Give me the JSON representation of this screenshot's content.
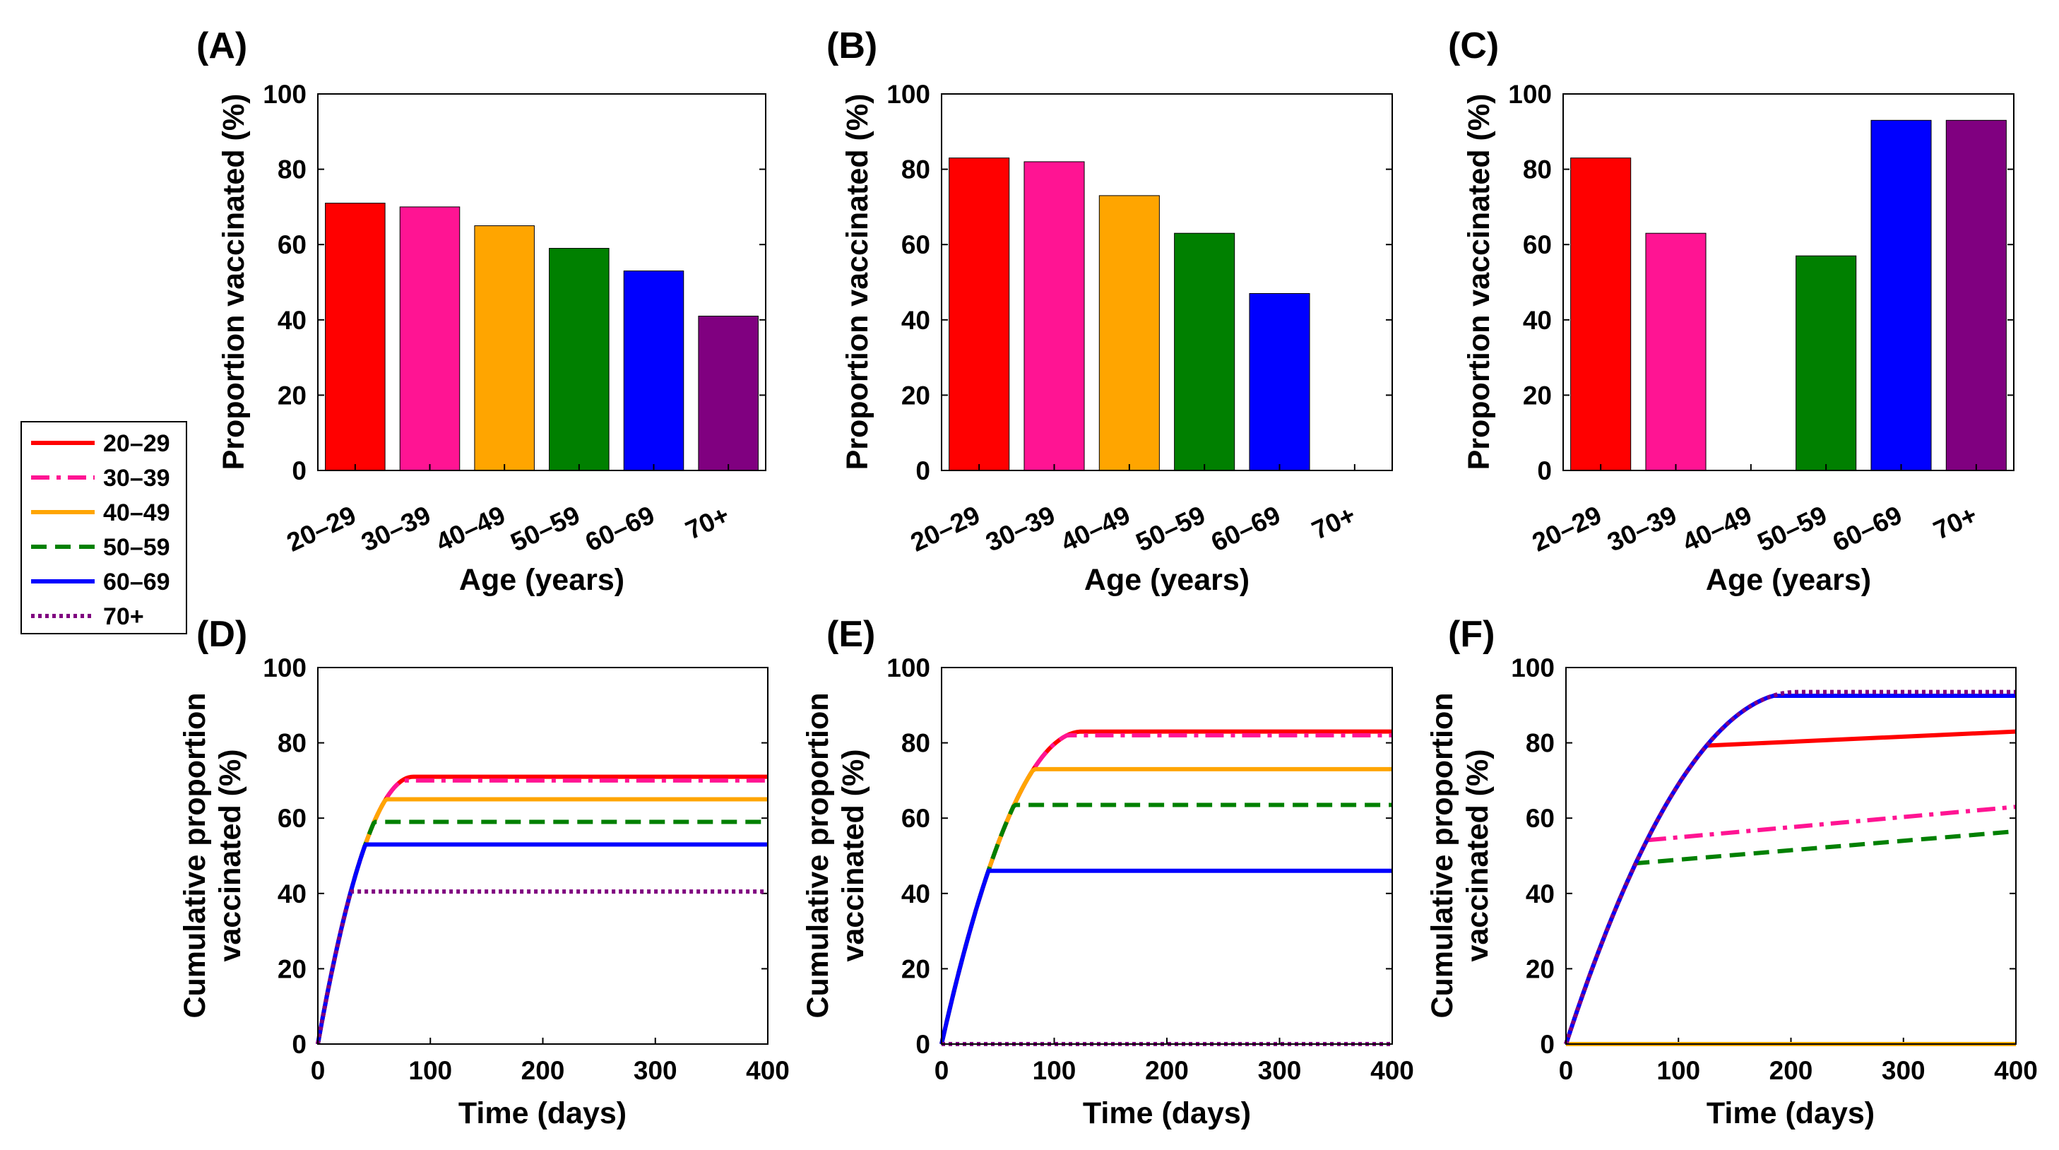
{
  "legend": {
    "entries": [
      {
        "label": "20–29",
        "color": "#ff0000",
        "style": "solid"
      },
      {
        "label": "30–39",
        "color": "#ff1493",
        "style": "dashdot"
      },
      {
        "label": "40–49",
        "color": "#ffa500",
        "style": "solid"
      },
      {
        "label": "50–59",
        "color": "#008000",
        "style": "dashed"
      },
      {
        "label": "60–69",
        "color": "#0000ff",
        "style": "solid"
      },
      {
        "label": "70+",
        "color": "#800080",
        "style": "dotted"
      }
    ]
  },
  "chart_data": [
    {
      "panel": "(A)",
      "type": "bar",
      "categories": [
        "20–29",
        "30–39",
        "40–49",
        "50–59",
        "60–69",
        "70+"
      ],
      "values": [
        71,
        70,
        65,
        59,
        53,
        41
      ],
      "colors": [
        "#ff0000",
        "#ff1493",
        "#ffa500",
        "#008000",
        "#0000ff",
        "#800080"
      ],
      "xlabel": "Age (years)",
      "ylabel": "Proportion vaccinated (%)",
      "ylim": [
        0,
        100
      ],
      "yticks": [
        0,
        20,
        40,
        60,
        80,
        100
      ]
    },
    {
      "panel": "(B)",
      "type": "bar",
      "categories": [
        "20–29",
        "30–39",
        "40–49",
        "50–59",
        "60–69",
        "70+"
      ],
      "values": [
        83,
        82,
        73,
        63,
        47,
        0
      ],
      "colors": [
        "#ff0000",
        "#ff1493",
        "#ffa500",
        "#008000",
        "#0000ff",
        "#800080"
      ],
      "xlabel": "Age (years)",
      "ylabel": "Proportion vaccinated (%)",
      "ylim": [
        0,
        100
      ],
      "yticks": [
        0,
        20,
        40,
        60,
        80,
        100
      ]
    },
    {
      "panel": "(C)",
      "type": "bar",
      "categories": [
        "20–29",
        "30–39",
        "40–49",
        "50–59",
        "60–69",
        "70+"
      ],
      "values": [
        83,
        63,
        0,
        57,
        93,
        93
      ],
      "colors": [
        "#ff0000",
        "#ff1493",
        "#ffa500",
        "#008000",
        "#0000ff",
        "#800080"
      ],
      "xlabel": "Age (years)",
      "ylabel": "Proportion vaccinated (%)",
      "ylim": [
        0,
        100
      ],
      "yticks": [
        0,
        20,
        40,
        60,
        80,
        100
      ]
    },
    {
      "panel": "(D)",
      "type": "line",
      "xlabel": "Time (days)",
      "ylabel": [
        "Cumulative proportion",
        "vaccinated (%)"
      ],
      "xlim": [
        0,
        400
      ],
      "xticks": [
        0,
        100,
        200,
        300,
        400
      ],
      "ylim": [
        0,
        100
      ],
      "yticks": [
        0,
        20,
        40,
        60,
        80,
        100
      ],
      "series": [
        {
          "name": "20–29",
          "plateau": 71,
          "t_sat": 85,
          "shape_days": 85
        },
        {
          "name": "30–39",
          "plateau": 70,
          "t_sat": 82,
          "shape_days": 85
        },
        {
          "name": "40–49",
          "plateau": 65,
          "t_sat": 70,
          "shape_days": 85
        },
        {
          "name": "50–59",
          "plateau": 59,
          "t_sat": 62,
          "shape_days": 85
        },
        {
          "name": "60–69",
          "plateau": 53,
          "t_sat": 52,
          "shape_days": 85
        },
        {
          "name": "70+",
          "plateau": 40.5,
          "t_sat": 36,
          "shape_days": 85
        }
      ]
    },
    {
      "panel": "(E)",
      "type": "line",
      "xlabel": "Time (days)",
      "ylabel": [
        "Cumulative proportion",
        "vaccinated (%)"
      ],
      "xlim": [
        0,
        400
      ],
      "xticks": [
        0,
        100,
        200,
        300,
        400
      ],
      "ylim": [
        0,
        100
      ],
      "yticks": [
        0,
        20,
        40,
        60,
        80,
        100
      ],
      "series": [
        {
          "name": "20–29",
          "plateau": 83,
          "t_sat": 123,
          "shape_days": 125
        },
        {
          "name": "30–39",
          "plateau": 82,
          "t_sat": 120,
          "shape_days": 125
        },
        {
          "name": "40–49",
          "plateau": 73,
          "t_sat": 95,
          "shape_days": 125
        },
        {
          "name": "50–59",
          "plateau": 63.5,
          "t_sat": 75,
          "shape_days": 125
        },
        {
          "name": "60–69",
          "plateau": 46,
          "t_sat": 45,
          "shape_days": 125
        },
        {
          "name": "70+",
          "plateau": 0,
          "t_sat": 0,
          "shape_days": 125
        }
      ]
    },
    {
      "panel": "(F)",
      "type": "line",
      "xlabel": "Time (days)",
      "ylabel": [
        "Cumulative proportion",
        "vaccinated (%)"
      ],
      "xlim": [
        0,
        400
      ],
      "xticks": [
        0,
        100,
        200,
        300,
        400
      ],
      "ylim": [
        0,
        100
      ],
      "yticks": [
        0,
        20,
        40,
        60,
        80,
        100
      ],
      "series": [
        {
          "name": "20–29",
          "plateau": 83,
          "t_sat": 125,
          "shape_days": 205
        },
        {
          "name": "30–39",
          "plateau": 63,
          "t_sat": 72,
          "shape_days": 205
        },
        {
          "name": "40–49",
          "plateau": 0,
          "t_sat": 0,
          "shape_days": 205
        },
        {
          "name": "50–59",
          "plateau": 56.5,
          "t_sat": 62,
          "shape_days": 205
        },
        {
          "name": "60–69",
          "plateau": 92.5,
          "t_sat": 205,
          "shape_days": 205
        },
        {
          "name": "70+",
          "plateau": 93.5,
          "t_sat": 208,
          "shape_days": 205
        }
      ]
    }
  ]
}
